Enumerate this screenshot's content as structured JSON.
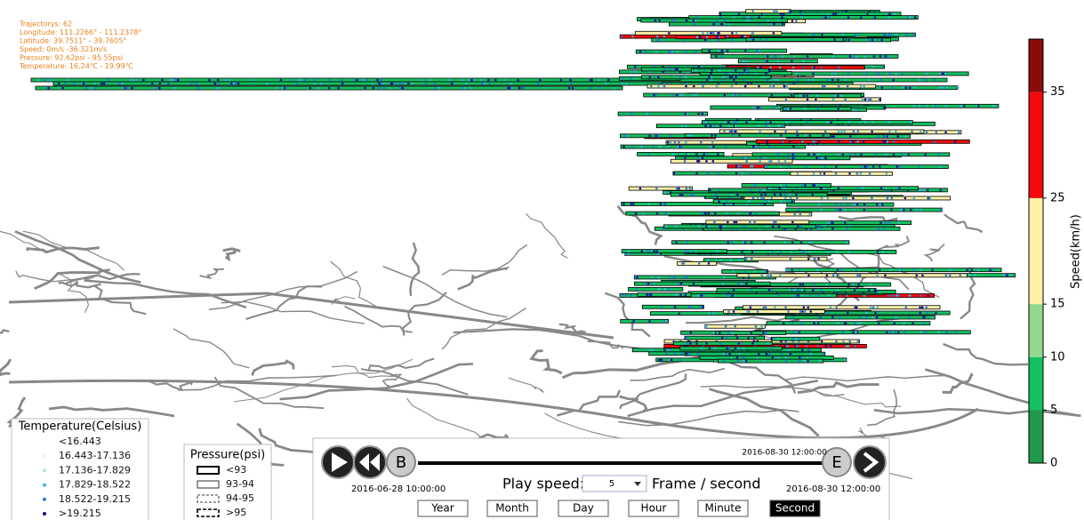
{
  "info": [
    "Trajectorys: 62",
    "Longitude: 111.2266° - 111.2378°",
    "Latitude: 39.7511° - 39.7605°",
    "Speed: 0m/s -36.321m/s",
    "Pressure: 92.62psi - 95.55psi",
    "Temperature: 16.24℃ - 19.99℃"
  ],
  "colorbar": {
    "label": "Speed(km/h)",
    "lim": [
      0,
      40
    ],
    "ticks": [
      0,
      5,
      10,
      15,
      25,
      35
    ],
    "bins": [
      0,
      5,
      10,
      15,
      25,
      35,
      40
    ],
    "colors": [
      "#1e9a48",
      "#14c060",
      "#8fd88d",
      "#fdf1a8",
      "#f40a0a",
      "#8a0b0b"
    ]
  },
  "temperature_legend": {
    "title": "Temperature(Celsius)",
    "items": [
      {
        "label": "<16.443",
        "color": "#ffffff"
      },
      {
        "label": "16.443-17.136",
        "color": "#e6f7f4"
      },
      {
        "label": "17.136-17.829",
        "color": "#a8e6e0"
      },
      {
        "label": "17.829-18.522",
        "color": "#3cb8e0"
      },
      {
        "label": "18.522-19.215",
        "color": "#2a7be0"
      },
      {
        "label": ">19.215",
        "color": "#0a0aa0"
      }
    ]
  },
  "pressure_legend": {
    "title": "Pressure(psi)",
    "items": [
      {
        "label": "<93",
        "style": "thick"
      },
      {
        "label": "93-94",
        "style": "thin"
      },
      {
        "label": "94-95",
        "style": "dashed"
      },
      {
        "label": ">95",
        "style": "bold-dashed"
      }
    ]
  },
  "player": {
    "begin_label": "B",
    "end_label": "E",
    "current_time": "2016-08-30   12:00:00",
    "start_time": "2016-06-28  10:00:00",
    "end_time": "2016-08-30  12:00:00",
    "speed_label": "Play speed:",
    "speed_value": "5",
    "speed_unit": "Frame / second",
    "buttons": [
      "Year",
      "Month",
      "Day",
      "Hour",
      "Minute",
      "Second"
    ],
    "selected": "Second"
  }
}
